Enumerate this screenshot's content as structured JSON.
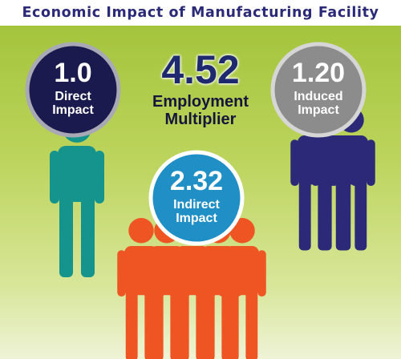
{
  "title": "Economic Impact of Manufacturing Facility",
  "multiplier": {
    "value": "4.52",
    "label_line1": "Employment",
    "label_line2": "Multiplier"
  },
  "impacts": [
    {
      "value": "1.0",
      "label_line1": "Direct",
      "label_line2": "Impact",
      "color": "#1b1a4f",
      "figure_color": "#14948c"
    },
    {
      "value": "2.32",
      "label_line1": "Indirect",
      "label_line2": "Impact",
      "color": "#1f8fc6",
      "figure_color": "#ef5423"
    },
    {
      "value": "1.20",
      "label_line1": "Induced",
      "label_line2": "Impact",
      "color": "#8c8c8c",
      "figure_color": "#2c2a78"
    }
  ],
  "colors": {
    "background_top": "#a4c43c",
    "background_bottom": "#eef3d6",
    "title": "#2b2a78",
    "multiplier": "#1f2a6e"
  }
}
